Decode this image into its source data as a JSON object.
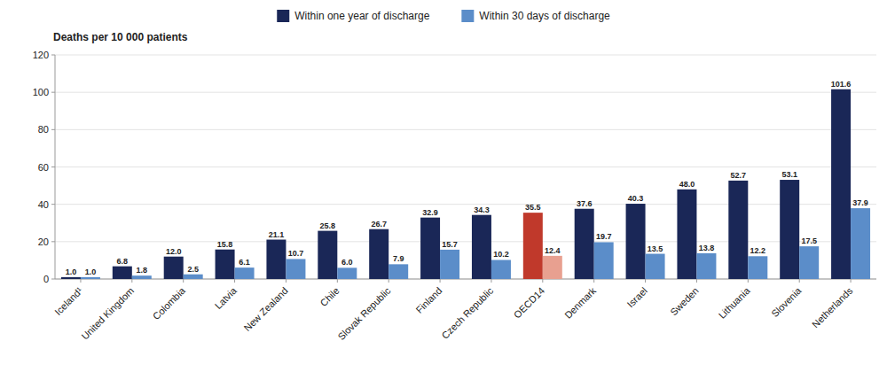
{
  "chart_data": {
    "type": "bar",
    "ylabel": "Deaths per 10 000 patients",
    "categories": [
      "Iceland¹",
      "United Kingdom",
      "Colombia",
      "Latvia",
      "New Zealand",
      "Chile",
      "Slovak Republic",
      "Finland",
      "Czech Republic",
      "OECD14",
      "Denmark",
      "Israel",
      "Sweden",
      "Lithuania",
      "Slovenia",
      "Netherlands"
    ],
    "series": [
      {
        "name": "Within one year of discharge",
        "color": "#1a2757",
        "colors": [
          "#1a2757",
          "#1a2757",
          "#1a2757",
          "#1a2757",
          "#1a2757",
          "#1a2757",
          "#1a2757",
          "#1a2757",
          "#1a2757",
          "#c0392b",
          "#1a2757",
          "#1a2757",
          "#1a2757",
          "#1a2757",
          "#1a2757",
          "#1a2757"
        ],
        "values": [
          1.0,
          6.8,
          12.0,
          15.8,
          21.1,
          25.8,
          26.7,
          32.9,
          34.3,
          35.5,
          37.6,
          40.3,
          48.0,
          52.7,
          53.1,
          101.6
        ],
        "value_labels": [
          "1.0",
          "6.8",
          "12.0",
          "15.8",
          "21.1",
          "25.8",
          "26.7",
          "32.9",
          "34.3",
          "35.5",
          "37.6",
          "40.3",
          "48.0",
          "52.7",
          "53.1",
          "101.6"
        ]
      },
      {
        "name": "Within 30 days of discharge",
        "color": "#5b8dc9",
        "colors": [
          "#5b8dc9",
          "#5b8dc9",
          "#5b8dc9",
          "#5b8dc9",
          "#5b8dc9",
          "#5b8dc9",
          "#5b8dc9",
          "#5b8dc9",
          "#5b8dc9",
          "#e8a090",
          "#5b8dc9",
          "#5b8dc9",
          "#5b8dc9",
          "#5b8dc9",
          "#5b8dc9",
          "#5b8dc9"
        ],
        "values": [
          1.0,
          1.8,
          2.5,
          6.1,
          10.7,
          6.0,
          7.9,
          15.7,
          10.2,
          12.4,
          19.7,
          13.5,
          13.8,
          12.2,
          17.5,
          37.9
        ],
        "value_labels": [
          "1.0",
          "1.8",
          "2.5",
          "6.1",
          "10.7",
          "6.0",
          "7.9",
          "15.7",
          "10.2",
          "12.4",
          "19.7",
          "13.5",
          "13.8",
          "12.2",
          "17.5",
          "37.9"
        ]
      }
    ],
    "ylim": [
      0,
      120
    ],
    "yticks": [
      0,
      20,
      40,
      60,
      80,
      100,
      120
    ],
    "grid": true,
    "legend": "top",
    "data_labels": true
  }
}
